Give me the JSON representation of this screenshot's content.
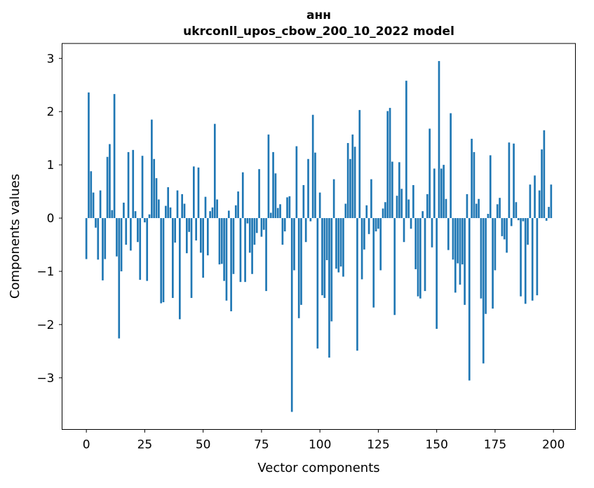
{
  "figure": {
    "title_line1": "анн",
    "title_line2": "ukrconll_upos_cbow_200_10_2022 model",
    "xlabel": "Vector components",
    "ylabel": "Components values"
  },
  "chart_data": {
    "type": "bar",
    "title": "анн",
    "subtitle": "ukrconll_upos_cbow_200_10_2022 model",
    "xlabel": "Vector components",
    "ylabel": "Components values",
    "bar_color": "#1f77b4",
    "background_color": "#ffffff",
    "grid": false,
    "x_ticks": [
      0,
      25,
      50,
      75,
      100,
      125,
      150,
      175,
      200
    ],
    "y_ticks": [
      -3,
      -2,
      -1,
      0,
      1,
      2,
      3
    ],
    "xlim": [
      -10.4,
      209.4
    ],
    "ylim": [
      -3.97,
      3.28
    ],
    "n_components": 200,
    "values": [
      -0.77,
      2.36,
      0.88,
      0.48,
      -0.18,
      -0.78,
      0.52,
      -1.17,
      -0.77,
      1.15,
      1.39,
      0.15,
      2.33,
      -0.72,
      -2.26,
      -1.0,
      0.29,
      -0.5,
      1.24,
      -0.61,
      1.28,
      0.13,
      -0.45,
      -1.16,
      1.17,
      -0.08,
      -1.18,
      0.07,
      1.85,
      1.11,
      0.75,
      0.35,
      -1.6,
      -1.58,
      0.23,
      0.58,
      0.2,
      -1.5,
      -0.46,
      0.52,
      -1.9,
      0.45,
      0.27,
      -0.66,
      -0.26,
      -1.5,
      0.97,
      -0.42,
      0.95,
      -0.65,
      -1.12,
      0.4,
      -0.7,
      0.13,
      0.2,
      1.77,
      0.35,
      -0.87,
      -0.86,
      -1.18,
      -1.55,
      0.14,
      -1.75,
      -1.05,
      0.24,
      0.5,
      -1.2,
      0.86,
      -1.2,
      -0.1,
      -0.65,
      -1.05,
      -0.5,
      -0.28,
      0.92,
      -0.35,
      -0.22,
      -1.37,
      1.57,
      0.1,
      1.24,
      0.84,
      0.19,
      0.26,
      -0.5,
      -0.25,
      0.39,
      0.41,
      -3.64,
      -0.98,
      1.35,
      -1.88,
      -1.63,
      0.62,
      -0.45,
      1.11,
      -0.06,
      1.94,
      1.23,
      -2.45,
      0.48,
      -1.45,
      -1.5,
      -0.79,
      -2.62,
      -1.94,
      0.73,
      -0.95,
      -1.02,
      -0.91,
      -1.1,
      0.27,
      1.41,
      1.11,
      1.57,
      1.34,
      -2.49,
      2.03,
      -1.15,
      -0.59,
      0.24,
      -0.3,
      0.73,
      -1.68,
      -0.25,
      -0.2,
      -0.98,
      0.18,
      0.3,
      2.01,
      2.07,
      1.06,
      -1.82,
      0.42,
      1.05,
      0.55,
      -0.45,
      2.58,
      0.35,
      -0.2,
      0.62,
      -0.96,
      -1.47,
      -1.51,
      0.13,
      -1.37,
      0.45,
      1.68,
      -0.55,
      0.93,
      -2.08,
      2.95,
      0.93,
      1.0,
      0.36,
      -0.6,
      1.97,
      -0.78,
      -1.4,
      -0.85,
      -1.25,
      -0.87,
      -1.63,
      0.45,
      -3.05,
      1.49,
      1.24,
      0.27,
      0.36,
      -1.51,
      -2.73,
      -1.8,
      0.08,
      1.18,
      -1.7,
      -0.98,
      0.26,
      0.38,
      -0.34,
      -0.4,
      -0.65,
      1.42,
      -0.15,
      1.4,
      0.3,
      -0.04,
      -1.47,
      -0.06,
      -1.61,
      -0.5,
      0.63,
      -1.55,
      0.8,
      -1.45,
      0.52,
      1.29,
      1.65,
      -0.05,
      0.21,
      0.63
    ]
  }
}
